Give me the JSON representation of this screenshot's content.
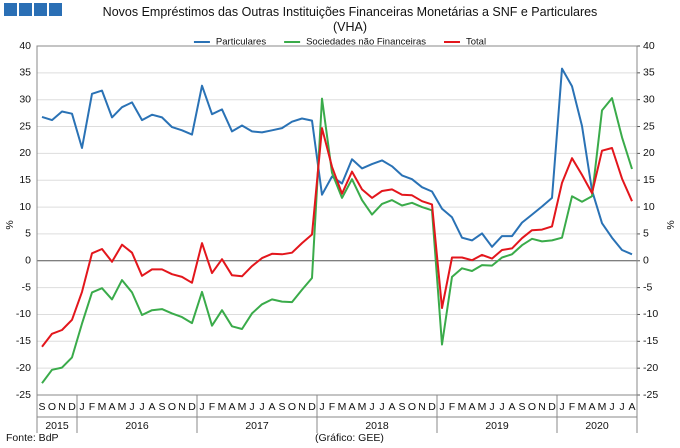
{
  "chart_data": {
    "type": "line",
    "title": "Novos Empréstimos das Outras Instituições Financeiras Monetárias a SNF e Particulares (VHA)",
    "ylabel": "%",
    "y2label": "%",
    "categories": [
      "S",
      "O",
      "N",
      "D",
      "J",
      "F",
      "M",
      "A",
      "M",
      "J",
      "J",
      "A",
      "S",
      "O",
      "N",
      "D",
      "J",
      "F",
      "M",
      "A",
      "M",
      "J",
      "J",
      "A",
      "S",
      "O",
      "N",
      "D",
      "J",
      "F",
      "M",
      "A",
      "M",
      "J",
      "J",
      "A",
      "S",
      "O",
      "N",
      "D",
      "J",
      "F",
      "M",
      "A",
      "M",
      "J",
      "J",
      "A",
      "S",
      "O",
      "N",
      "D",
      "J",
      "F",
      "M",
      "A",
      "M",
      "J",
      "J",
      "A"
    ],
    "year_labels": [
      "2015",
      "2016",
      "2017",
      "2018",
      "2019",
      "2020"
    ],
    "series": [
      {
        "name": "Particulares",
        "color": "#2a72b5",
        "values": [
          26.8,
          26.2,
          27.8,
          27.4,
          21,
          31.1,
          31.7,
          26.7,
          28.6,
          29.5,
          26.2,
          27.2,
          26.7,
          24.9,
          24.3,
          23.5,
          32.6,
          27.3,
          28.2,
          24.1,
          25.2,
          24.1,
          23.9,
          24.3,
          24.7,
          25.9,
          26.5,
          26.1,
          12.3,
          15.7,
          14.4,
          18.9,
          17.2,
          18.0,
          18.7,
          17.6,
          15.9,
          15.2,
          13.7,
          12.9,
          9.7,
          8.1,
          4.3,
          3.8,
          5.1,
          2.6,
          4.6,
          4.6,
          7.1,
          8.6,
          10.1,
          11.7,
          35.8,
          32.5,
          25.1,
          13.1,
          7.0,
          4.3,
          2.0,
          1.2
        ]
      },
      {
        "name": "Sociedades não Financeiras",
        "color": "#3aab4a",
        "values": [
          -22.8,
          -20.3,
          -19.9,
          -18.0,
          -11.7,
          -5.9,
          -5.1,
          -7.2,
          -3.6,
          -5.9,
          -10.1,
          -9.2,
          -9.0,
          -9.8,
          -10.5,
          -11.6,
          -5.8,
          -12.1,
          -9.2,
          -12.2,
          -12.7,
          -9.8,
          -8.1,
          -7.2,
          -7.6,
          -7.7,
          -5.4,
          -3.2,
          30.2,
          16.4,
          11.7,
          15.2,
          11.3,
          8.6,
          10.6,
          11.3,
          10.3,
          10.8,
          10.0,
          9.4,
          -15.6,
          -3.0,
          -1.4,
          -1.9,
          -0.8,
          -0.9,
          0.6,
          1.2,
          2.9,
          4.1,
          3.6,
          3.8,
          4.3,
          12.0,
          11.0,
          12.0,
          28.0,
          30.3,
          23.0,
          17.1
        ]
      },
      {
        "name": "Total",
        "color": "#e3161c",
        "values": [
          -16,
          -13.6,
          -12.9,
          -11.0,
          -5.8,
          1.4,
          2.2,
          -0.2,
          3.0,
          1.5,
          -2.8,
          -1.6,
          -1.6,
          -2.5,
          -3.0,
          -4.1,
          3.3,
          -2.3,
          0.3,
          -2.7,
          -2.9,
          -1.0,
          0.5,
          1.3,
          1.2,
          1.5,
          3.3,
          4.9,
          24.7,
          17.5,
          12.5,
          16.6,
          13.3,
          11.7,
          13.0,
          13.3,
          12.3,
          12.2,
          11.1,
          10.5,
          -8.8,
          0.6,
          0.6,
          0.1,
          1.1,
          0.4,
          2.0,
          2.3,
          4.2,
          5.7,
          5.8,
          6.4,
          14.5,
          19.1,
          16.0,
          12.6,
          20.5,
          21.0,
          15.3,
          11.1
        ]
      }
    ],
    "ylim": [
      -25,
      40
    ],
    "yticks": [
      -25,
      -20,
      -15,
      -10,
      -5,
      0,
      5,
      10,
      15,
      20,
      25,
      30,
      35,
      40
    ],
    "y2lim": [
      -25,
      40
    ],
    "y2ticks": [
      -25,
      -20,
      -15,
      -10,
      -5,
      0,
      5,
      10,
      15,
      20,
      25,
      30,
      35,
      40
    ],
    "grid": true,
    "legend": "top",
    "source": "Fonte: BdP",
    "credit": "(Gráfico: GEE)"
  }
}
